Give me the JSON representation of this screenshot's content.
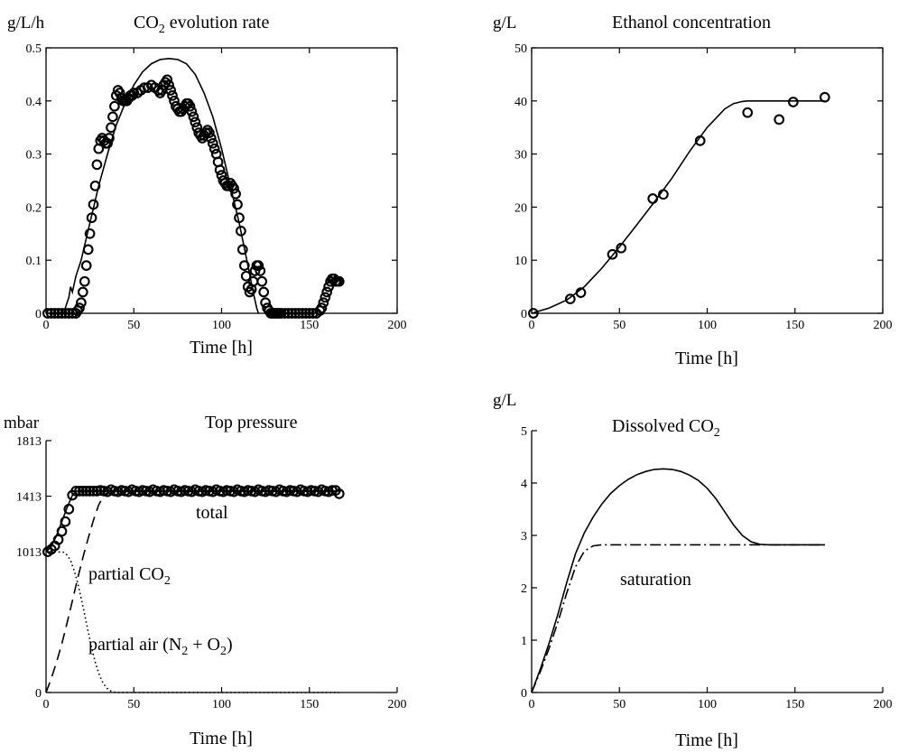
{
  "chart_data": [
    {
      "type": "scatter",
      "title": "CO",
      "title_sub": "2",
      "title_rest": " evolution rate",
      "ylabel": "g/L/h",
      "xlabel": "Time [h]",
      "xlim": [
        0,
        200
      ],
      "ylim": [
        0,
        0.5
      ],
      "xticks": [
        0,
        50,
        100,
        150,
        200
      ],
      "yticks": [
        0,
        0.1,
        0.2,
        0.3,
        0.4,
        0.5
      ],
      "ytick_labels": [
        "0",
        "0.1",
        "0.2",
        "0.3",
        "0.4",
        "0.5"
      ],
      "grid": false,
      "series": [
        {
          "style": "markers",
          "x": [
            1,
            3,
            5,
            7,
            9,
            11,
            13,
            15,
            17,
            18,
            19,
            20,
            21,
            22,
            23,
            24,
            25,
            26,
            27,
            28,
            29,
            30,
            31,
            32,
            33,
            34,
            35,
            36,
            37,
            38,
            39,
            40,
            41,
            42,
            43,
            44,
            45,
            46,
            47,
            48,
            49,
            50,
            52,
            54,
            56,
            58,
            60,
            62,
            64,
            65,
            66,
            67,
            68,
            69,
            70,
            71,
            72,
            73,
            74,
            75,
            76,
            77,
            78,
            79,
            80,
            81,
            82,
            83,
            84,
            85,
            86,
            87,
            88,
            89,
            90,
            91,
            92,
            93,
            94,
            95,
            96,
            97,
            98,
            99,
            100,
            101,
            102,
            103,
            104,
            105,
            106,
            107,
            108,
            109,
            110,
            111,
            112,
            113,
            114,
            115,
            116,
            117,
            118,
            119,
            120,
            121,
            122,
            123,
            124,
            125,
            126,
            127,
            128,
            129,
            130,
            131,
            132,
            133,
            134,
            136,
            138,
            140,
            142,
            144,
            146,
            148,
            150,
            152,
            154,
            156,
            157,
            158,
            159,
            160,
            161,
            162,
            163,
            164,
            165,
            166,
            167
          ],
          "y": [
            0,
            0,
            0,
            0,
            0,
            0,
            0,
            0,
            0,
            0.005,
            0.01,
            0.02,
            0.04,
            0.06,
            0.09,
            0.12,
            0.15,
            0.18,
            0.205,
            0.24,
            0.28,
            0.31,
            0.325,
            0.33,
            0.325,
            0.32,
            0.32,
            0.33,
            0.35,
            0.37,
            0.39,
            0.41,
            0.42,
            0.415,
            0.405,
            0.4,
            0.4,
            0.4,
            0.405,
            0.41,
            0.41,
            0.415,
            0.415,
            0.42,
            0.425,
            0.425,
            0.43,
            0.425,
            0.42,
            0.415,
            0.42,
            0.43,
            0.435,
            0.44,
            0.43,
            0.42,
            0.41,
            0.4,
            0.39,
            0.385,
            0.38,
            0.38,
            0.385,
            0.39,
            0.395,
            0.395,
            0.39,
            0.38,
            0.37,
            0.36,
            0.35,
            0.34,
            0.335,
            0.33,
            0.335,
            0.34,
            0.345,
            0.34,
            0.33,
            0.32,
            0.31,
            0.3,
            0.285,
            0.27,
            0.26,
            0.25,
            0.245,
            0.24,
            0.24,
            0.245,
            0.24,
            0.235,
            0.225,
            0.205,
            0.18,
            0.155,
            0.12,
            0.09,
            0.07,
            0.05,
            0.04,
            0.045,
            0.06,
            0.08,
            0.09,
            0.09,
            0.08,
            0.06,
            0.04,
            0.02,
            0.01,
            0.005,
            0,
            0,
            0,
            0,
            0,
            0,
            0,
            0,
            0,
            0,
            0,
            0,
            0,
            0,
            0,
            0,
            0,
            0.005,
            0.01,
            0.02,
            0.03,
            0.04,
            0.05,
            0.06,
            0.065,
            0.065,
            0.06,
            0.06,
            0.06
          ]
        },
        {
          "style": "solid",
          "x": [
            0,
            10,
            12,
            13,
            14,
            15,
            17,
            20,
            25,
            30,
            35,
            40,
            45,
            50,
            55,
            60,
            65,
            70,
            75,
            80,
            85,
            90,
            95,
            100,
            105,
            110,
            115,
            118,
            120,
            121
          ],
          "y": [
            0,
            0,
            0.02,
            0.03,
            0.05,
            0.04,
            0.07,
            0.1,
            0.17,
            0.24,
            0.3,
            0.355,
            0.395,
            0.43,
            0.455,
            0.47,
            0.478,
            0.48,
            0.478,
            0.47,
            0.45,
            0.415,
            0.37,
            0.31,
            0.24,
            0.17,
            0.09,
            0.04,
            0.01,
            0
          ]
        }
      ]
    },
    {
      "type": "scatter",
      "title": "Ethanol concentration",
      "ylabel": "g/L",
      "xlabel": "Time [h]",
      "xlim": [
        0,
        200
      ],
      "ylim": [
        0,
        50
      ],
      "xticks": [
        0,
        50,
        100,
        150,
        200
      ],
      "yticks": [
        0,
        10,
        20,
        30,
        40,
        50
      ],
      "ytick_labels": [
        "0",
        "10",
        "20",
        "30",
        "40",
        "50"
      ],
      "grid": false,
      "series": [
        {
          "style": "markers",
          "x": [
            1,
            22,
            28,
            46,
            51,
            69,
            75,
            96,
            123,
            141,
            149,
            167
          ],
          "y": [
            0,
            2.7,
            3.9,
            11.1,
            12.3,
            21.6,
            22.4,
            32.5,
            37.8,
            36.5,
            39.8,
            40.7
          ]
        },
        {
          "style": "solid",
          "x": [
            0,
            10,
            20,
            30,
            40,
            50,
            60,
            70,
            80,
            90,
            100,
            110,
            115,
            120,
            123,
            130,
            140,
            150,
            160,
            167
          ],
          "y": [
            0,
            1,
            2.5,
            5,
            8.5,
            12.5,
            16.7,
            21,
            25.5,
            30.5,
            35,
            38.5,
            39.5,
            39.9,
            40,
            40,
            40,
            40,
            40,
            40
          ]
        }
      ]
    },
    {
      "type": "scatter",
      "title": "Top pressure",
      "ylabel": "mbar",
      "xlabel": "Time [h]",
      "xlim": [
        0,
        200
      ],
      "ylim": [
        0,
        1813
      ],
      "xticks": [
        0,
        50,
        100,
        150,
        200
      ],
      "yticks": [
        0,
        1013,
        1413,
        1813
      ],
      "ytick_labels": [
        "0",
        "1013",
        "1413",
        "1813"
      ],
      "grid": false,
      "annotations": {
        "total": "total",
        "partial_co2": "partial CO",
        "partial_co2_sub": "2",
        "partial_air_a": "partial air (N",
        "partial_air_sub1": "2",
        "partial_air_b": " + O",
        "partial_air_sub2": "2",
        "partial_air_c": ")"
      },
      "series": [
        {
          "style": "markers",
          "x": [
            1,
            3,
            5,
            7,
            9,
            11,
            13,
            15,
            17,
            19,
            21,
            23,
            25,
            27,
            29,
            31,
            33,
            35,
            37,
            39,
            41,
            43,
            45,
            47,
            49,
            51,
            53,
            55,
            57,
            59,
            61,
            63,
            65,
            67,
            69,
            71,
            73,
            75,
            77,
            79,
            81,
            83,
            85,
            87,
            89,
            91,
            93,
            95,
            97,
            99,
            101,
            103,
            105,
            107,
            109,
            111,
            113,
            115,
            117,
            119,
            121,
            123,
            125,
            127,
            129,
            131,
            133,
            135,
            137,
            139,
            141,
            143,
            145,
            147,
            149,
            151,
            153,
            155,
            157,
            159,
            161,
            163,
            165,
            167
          ],
          "y": [
            1013,
            1030,
            1055,
            1100,
            1160,
            1230,
            1320,
            1420,
            1450,
            1450,
            1450,
            1450,
            1450,
            1450,
            1450,
            1455,
            1450,
            1445,
            1460,
            1450,
            1445,
            1455,
            1450,
            1445,
            1460,
            1450,
            1445,
            1455,
            1450,
            1445,
            1460,
            1450,
            1445,
            1455,
            1450,
            1445,
            1460,
            1450,
            1445,
            1455,
            1450,
            1445,
            1460,
            1450,
            1445,
            1455,
            1450,
            1445,
            1460,
            1450,
            1445,
            1455,
            1450,
            1445,
            1460,
            1450,
            1445,
            1455,
            1450,
            1445,
            1460,
            1450,
            1445,
            1455,
            1450,
            1445,
            1460,
            1450,
            1445,
            1455,
            1450,
            1445,
            1460,
            1450,
            1445,
            1455,
            1450,
            1445,
            1460,
            1450,
            1445,
            1455,
            1455,
            1430
          ]
        },
        {
          "style": "solid",
          "x": [
            0,
            3,
            6,
            9,
            12,
            15,
            17,
            20,
            50,
            100,
            150,
            167
          ],
          "y": [
            1013,
            1050,
            1130,
            1230,
            1330,
            1420,
            1450,
            1450,
            1450,
            1450,
            1450,
            1450
          ]
        },
        {
          "style": "dashed",
          "x": [
            0,
            3,
            6,
            9,
            12,
            15,
            18,
            21,
            24,
            27,
            30,
            33,
            36,
            167
          ],
          "y": [
            0,
            100,
            220,
            350,
            500,
            660,
            820,
            970,
            1110,
            1240,
            1350,
            1420,
            1450,
            1450
          ]
        },
        {
          "style": "dotted",
          "x": [
            0,
            5,
            10,
            12,
            14,
            16,
            18,
            20,
            22,
            24,
            26,
            28,
            30,
            32,
            34,
            36,
            38,
            40,
            167
          ],
          "y": [
            1013,
            1013,
            1010,
            990,
            950,
            880,
            790,
            680,
            560,
            440,
            320,
            220,
            140,
            80,
            40,
            15,
            5,
            0,
            0
          ]
        }
      ]
    },
    {
      "type": "line",
      "title": "Dissolved CO",
      "title_sub": "2",
      "ylabel": "g/L",
      "xlabel": "Time [h]",
      "xlim": [
        0,
        200
      ],
      "ylim": [
        0,
        5
      ],
      "xticks": [
        0,
        50,
        100,
        150,
        200
      ],
      "yticks": [
        0,
        1,
        2,
        3,
        4,
        5
      ],
      "ytick_labels": [
        "0",
        "1",
        "2",
        "3",
        "4",
        "5"
      ],
      "grid": false,
      "annotations": {
        "saturation": "saturation"
      },
      "series": [
        {
          "style": "solid",
          "x": [
            0,
            5,
            10,
            15,
            20,
            25,
            30,
            35,
            40,
            45,
            50,
            55,
            60,
            65,
            70,
            75,
            80,
            85,
            90,
            95,
            100,
            105,
            110,
            115,
            120,
            125,
            130,
            135,
            140,
            150,
            160,
            167
          ],
          "y": [
            0,
            0.45,
            0.95,
            1.5,
            2.1,
            2.65,
            3.05,
            3.35,
            3.6,
            3.8,
            3.95,
            4.07,
            4.16,
            4.22,
            4.26,
            4.27,
            4.26,
            4.22,
            4.15,
            4.05,
            3.9,
            3.7,
            3.45,
            3.2,
            3.0,
            2.88,
            2.83,
            2.82,
            2.82,
            2.82,
            2.82,
            2.82
          ]
        },
        {
          "style": "dashdot",
          "x": [
            0,
            5,
            10,
            15,
            20,
            25,
            30,
            35,
            40,
            50,
            100,
            150,
            167
          ],
          "y": [
            0,
            0.4,
            0.85,
            1.35,
            1.9,
            2.4,
            2.7,
            2.8,
            2.82,
            2.82,
            2.82,
            2.82,
            2.82
          ]
        }
      ]
    }
  ]
}
